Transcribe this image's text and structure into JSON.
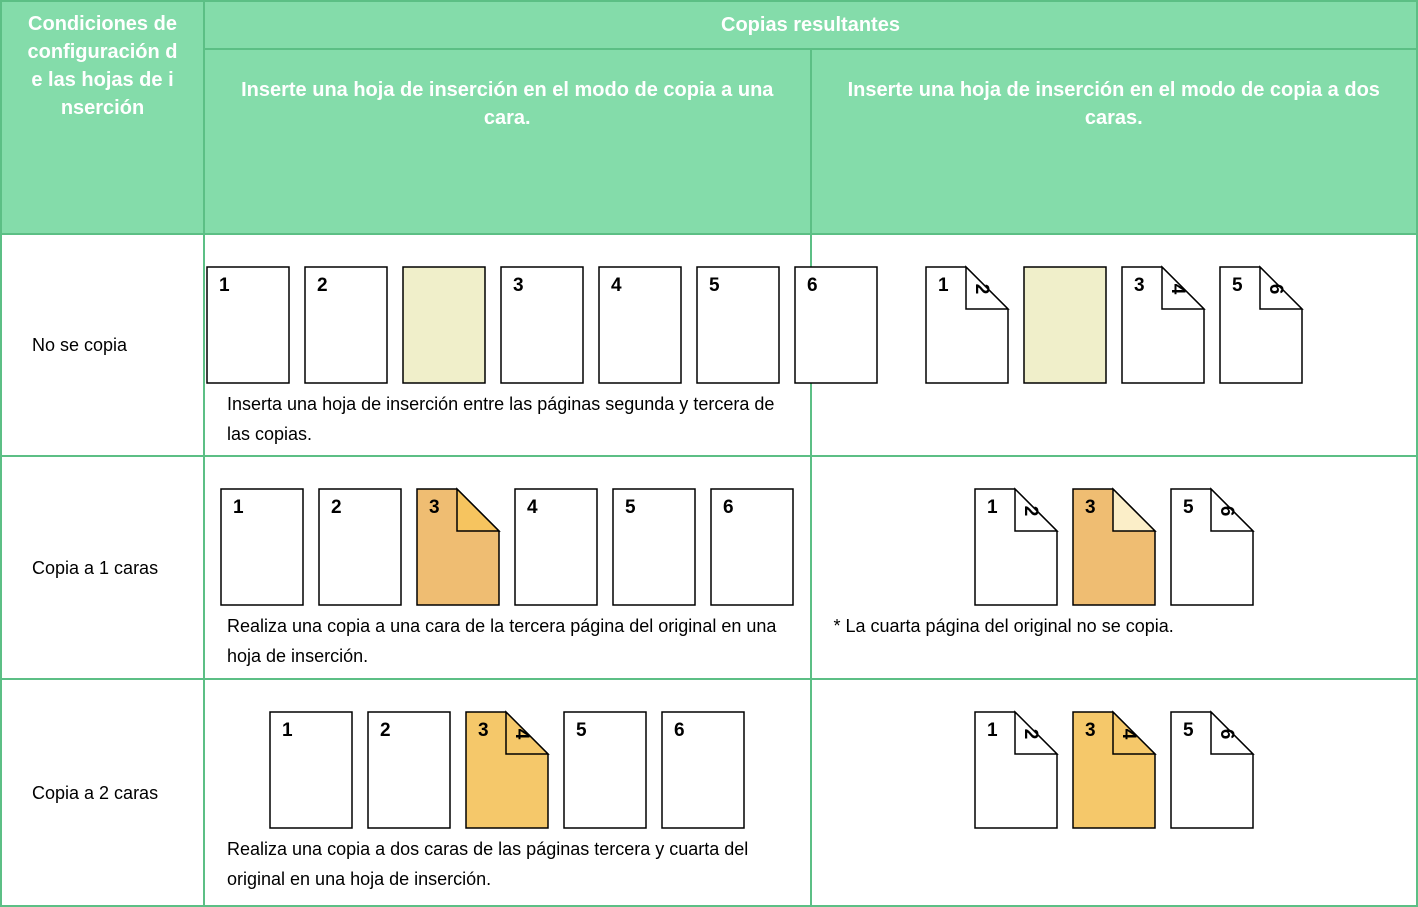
{
  "table": {
    "header": {
      "condition": "Condiciones de configuración de las hojas de inserción",
      "group": "Copias resultantes",
      "one_sided": "Inserte una hoja de inserción en el modo de copia a una cara.",
      "two_sided": "Inserte una hoja de inserción en el modo de copia a dos caras."
    },
    "rows": [
      {
        "condition": "No se copia",
        "one_sided": {
          "pages": [
            {
              "front": "1",
              "fill": "#ffffff"
            },
            {
              "front": "2",
              "fill": "#ffffff"
            },
            {
              "fill": "#f0efca"
            },
            {
              "front": "3",
              "fill": "#ffffff"
            },
            {
              "front": "4",
              "fill": "#ffffff"
            },
            {
              "front": "5",
              "fill": "#ffffff"
            },
            {
              "front": "6",
              "fill": "#ffffff"
            }
          ],
          "caption": "Inserta una hoja de inserción entre las páginas segunda y tercera de las copias."
        },
        "two_sided": {
          "pages": [
            {
              "front": "1",
              "back": "2",
              "fill": "#ffffff",
              "fold": "#ffffff"
            },
            {
              "fill": "#f0efca"
            },
            {
              "front": "3",
              "back": "4",
              "fill": "#ffffff",
              "fold": "#ffffff"
            },
            {
              "front": "5",
              "back": "6",
              "fill": "#ffffff",
              "fold": "#ffffff"
            }
          ]
        }
      },
      {
        "condition": "Copia a 1 caras",
        "one_sided": {
          "pages": [
            {
              "front": "1",
              "fill": "#ffffff"
            },
            {
              "front": "2",
              "fill": "#ffffff"
            },
            {
              "front": "3",
              "fill": "#efbd72",
              "fold": "#f6c45f"
            },
            {
              "front": "4",
              "fill": "#ffffff"
            },
            {
              "front": "5",
              "fill": "#ffffff"
            },
            {
              "front": "6",
              "fill": "#ffffff"
            }
          ],
          "caption": "Realiza una copia a una cara de la tercera página del original en una hoja de inserción."
        },
        "two_sided": {
          "pages": [
            {
              "front": "1",
              "back": "2",
              "fill": "#ffffff",
              "fold": "#ffffff"
            },
            {
              "front": "3",
              "fill": "#efbd72",
              "fold": "#fbeec8"
            },
            {
              "front": "5",
              "back": "6",
              "fill": "#ffffff",
              "fold": "#ffffff"
            }
          ],
          "caption": "* La cuarta página del original no se copia."
        }
      },
      {
        "condition": "Copia a 2 caras",
        "one_sided": {
          "pages": [
            {
              "front": "1",
              "fill": "#ffffff"
            },
            {
              "front": "2",
              "fill": "#ffffff"
            },
            {
              "front": "3",
              "back": "4",
              "fill": "#f5c86a",
              "fold": "#f5c86a"
            },
            {
              "front": "5",
              "fill": "#ffffff"
            },
            {
              "front": "6",
              "fill": "#ffffff"
            }
          ],
          "caption": "Realiza una copia a dos caras de las páginas tercera y cuarta del original en una hoja de inserción."
        },
        "two_sided": {
          "pages": [
            {
              "front": "1",
              "back": "2",
              "fill": "#ffffff",
              "fold": "#ffffff"
            },
            {
              "front": "3",
              "back": "4",
              "fill": "#f5c86a",
              "fold": "#f5c86a"
            },
            {
              "front": "5",
              "back": "6",
              "fill": "#ffffff",
              "fold": "#ffffff"
            }
          ]
        }
      }
    ]
  }
}
